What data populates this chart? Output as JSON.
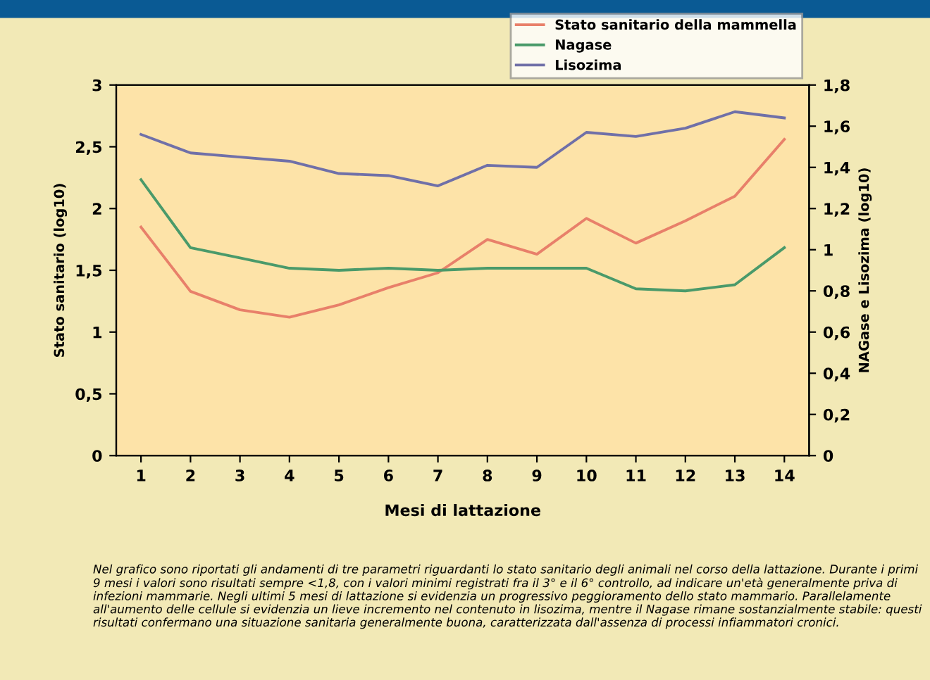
{
  "chart_data": {
    "type": "line",
    "xlabel": "Mesi di lattazione",
    "ylabel": "Stato sanitario (log10)",
    "y2label": "NAGase e Lisozima (log10)",
    "categories": [
      "1",
      "2",
      "3",
      "4",
      "5",
      "6",
      "7",
      "8",
      "9",
      "10",
      "11",
      "12",
      "13",
      "14"
    ],
    "series": [
      {
        "name": "Stato sanitario della mammella",
        "color": "#e8806a",
        "values": [
          1.85,
          1.33,
          1.18,
          1.12,
          1.22,
          1.36,
          1.48,
          1.75,
          1.63,
          1.92,
          1.72,
          1.9,
          2.1,
          2.56
        ]
      },
      {
        "name": "Nagase",
        "color": "#4a9a6a",
        "axis": "y2",
        "values": [
          1.34,
          1.01,
          0.96,
          0.91,
          0.9,
          0.91,
          0.9,
          0.91,
          0.91,
          0.91,
          0.81,
          0.8,
          0.83,
          1.01
        ]
      },
      {
        "name": "Lisozima",
        "color": "#7070a8",
        "axis": "y2",
        "values": [
          1.56,
          1.47,
          1.45,
          1.43,
          1.37,
          1.36,
          1.31,
          1.41,
          1.4,
          1.57,
          1.55,
          1.59,
          1.67,
          1.64
        ]
      }
    ],
    "ylim": [
      0,
      3
    ],
    "yticks": [
      0,
      {
        "value": 0.5,
        "label": "0,5"
      },
      1,
      {
        "value": 1.5,
        "label": "1,5"
      },
      2,
      {
        "value": 2.5,
        "label": "2,5"
      },
      3
    ],
    "y2lim": [
      0,
      1.8
    ],
    "y2ticks": [
      0,
      {
        "value": 0.2,
        "label": "0,2"
      },
      {
        "value": 0.4,
        "label": "0,4"
      },
      {
        "value": 0.6,
        "label": "0,6"
      },
      {
        "value": 0.8,
        "label": "0,8"
      },
      1,
      {
        "value": 1.2,
        "label": "1,2"
      },
      {
        "value": 1.4,
        "label": "1,4"
      },
      {
        "value": 1.6,
        "label": "1,6"
      },
      {
        "value": 1.8,
        "label": "1,8"
      }
    ],
    "grid": false,
    "legend": "top right",
    "marker": "none",
    "line_style": "solid",
    "annotations": [
      "Nel grafico sono riportati gli andamenti di tre parametri riguardanti lo stato sanitario degli animali nel corso della lattazione. Durante i primi 9 mesi i valori sono risultati sempre <1,8, con i valori minimi registrati fra il 3° e il 6° controllo, ad indicare un'età generalmente priva di infezioni mammarie. Negli ultimi 5 mesi di lattazione si evidenzia un progressivo peggioramento dello stato mammario. Parallelamente all'aumento delle cellule si evidenzia un lieve incremento nel contenuto in lisozima, mentre il Nagase rimane sostanzialmente stabile: questi risultati confermano una situazione sanitaria generalmente buona, caratterizzata dall'assenza di processi infiammatori cronici."
    ]
  }
}
